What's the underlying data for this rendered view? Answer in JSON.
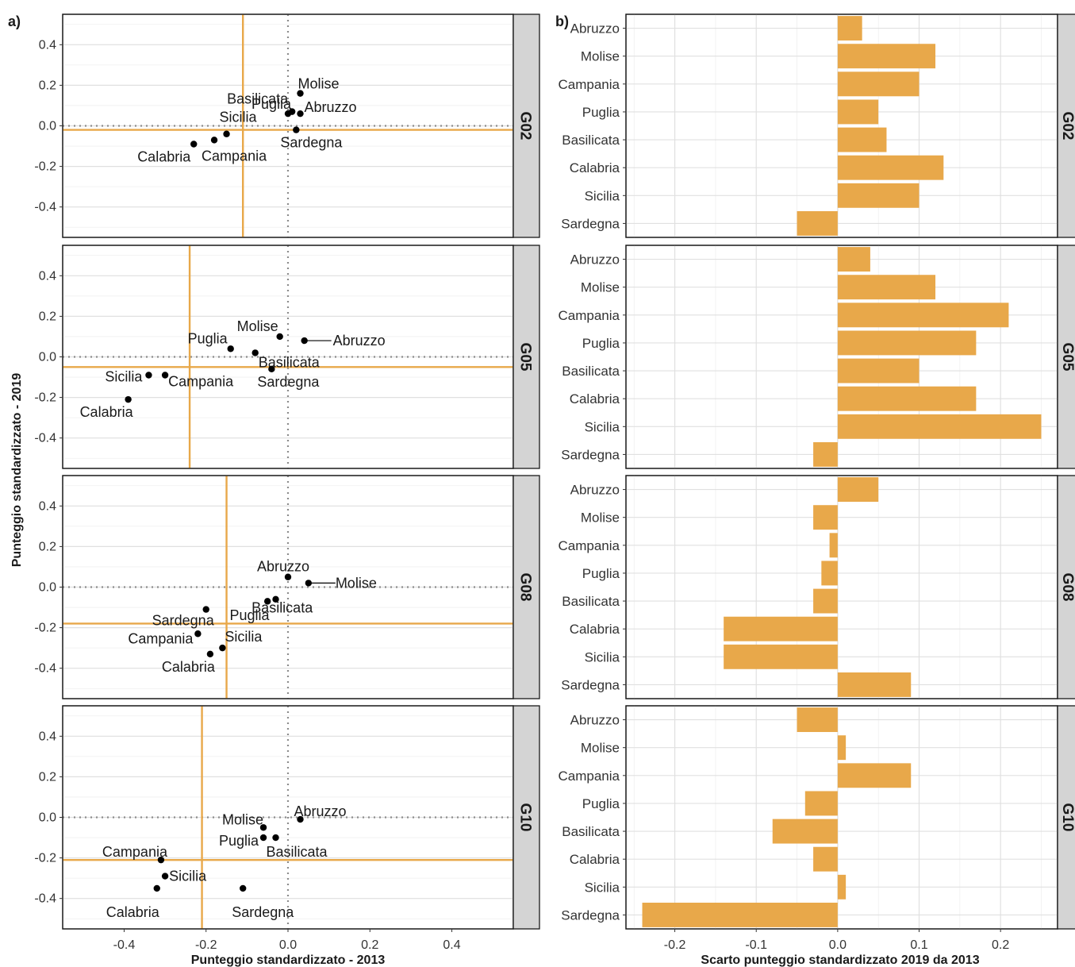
{
  "figure": {
    "panel_a_tag": "a)",
    "panel_b_tag": "b)"
  },
  "colors": {
    "accent": "#e8a84a",
    "bar": "#e8a84a",
    "point": "#000000",
    "strip": "#d4d4d4",
    "grid": "#e0e0e0",
    "zero_line": "#8c8c8c"
  },
  "chart_data": [
    {
      "type": "scatter",
      "panel": "a)",
      "xlabel": "Punteggio standardizzato - 2013",
      "ylabel": "Punteggio standardizzato - 2019",
      "xlim": [
        -0.55,
        0.55
      ],
      "ylim": [
        -0.55,
        0.55
      ],
      "xticks": [
        "-0.4",
        "-0.2",
        "0.0",
        "0.2",
        "0.4"
      ],
      "yticks": [
        "0.4",
        "0.2",
        "0.0",
        "-0.2",
        "-0.4"
      ],
      "zero_lines": "dotted",
      "grid": true,
      "facets": [
        {
          "name": "G02",
          "vline_x": -0.11,
          "hline_y": -0.02,
          "points": [
            {
              "label": "Molise",
              "x": 0.03,
              "y": 0.16
            },
            {
              "label": "Basilicata",
              "x": 0.01,
              "y": 0.07
            },
            {
              "label": "Puglia",
              "x": 0.0,
              "y": 0.06
            },
            {
              "label": "Abruzzo",
              "x": 0.03,
              "y": 0.06
            },
            {
              "label": "Sicilia",
              "x": -0.15,
              "y": -0.04
            },
            {
              "label": "Sardegna",
              "x": 0.02,
              "y": -0.02
            },
            {
              "label": "Campania",
              "x": -0.18,
              "y": -0.07
            },
            {
              "label": "Calabria",
              "x": -0.23,
              "y": -0.09
            }
          ]
        },
        {
          "name": "G05",
          "vline_x": -0.24,
          "hline_y": -0.05,
          "points": [
            {
              "label": "Molise",
              "x": -0.02,
              "y": 0.1
            },
            {
              "label": "Abruzzo",
              "x": 0.04,
              "y": 0.08
            },
            {
              "label": "Puglia",
              "x": -0.14,
              "y": 0.04
            },
            {
              "label": "Basilicata",
              "x": -0.08,
              "y": 0.02
            },
            {
              "label": "Sardegna",
              "x": -0.04,
              "y": -0.06
            },
            {
              "label": "Sicilia",
              "x": -0.34,
              "y": -0.09
            },
            {
              "label": "Campania",
              "x": -0.3,
              "y": -0.09
            },
            {
              "label": "Calabria",
              "x": -0.39,
              "y": -0.21
            }
          ]
        },
        {
          "name": "G08",
          "vline_x": -0.15,
          "hline_y": -0.18,
          "points": [
            {
              "label": "Abruzzo",
              "x": 0.0,
              "y": 0.05
            },
            {
              "label": "Molise",
              "x": 0.05,
              "y": 0.02
            },
            {
              "label": "Basilicata",
              "x": -0.05,
              "y": -0.07
            },
            {
              "label": "Puglia",
              "x": -0.03,
              "y": -0.06
            },
            {
              "label": "Sardegna",
              "x": -0.2,
              "y": -0.11
            },
            {
              "label": "Campania",
              "x": -0.22,
              "y": -0.23
            },
            {
              "label": "Sicilia",
              "x": -0.16,
              "y": -0.3
            },
            {
              "label": "Calabria",
              "x": -0.19,
              "y": -0.33
            }
          ]
        },
        {
          "name": "G10",
          "vline_x": -0.21,
          "hline_y": -0.21,
          "points": [
            {
              "label": "Abruzzo",
              "x": 0.03,
              "y": -0.01
            },
            {
              "label": "Molise",
              "x": -0.06,
              "y": -0.05
            },
            {
              "label": "Puglia",
              "x": -0.06,
              "y": -0.1
            },
            {
              "label": "Basilicata",
              "x": -0.03,
              "y": -0.1
            },
            {
              "label": "Campania",
              "x": -0.31,
              "y": -0.21
            },
            {
              "label": "Sicilia",
              "x": -0.3,
              "y": -0.29
            },
            {
              "label": "Calabria",
              "x": -0.32,
              "y": -0.35
            },
            {
              "label": "Sardegna",
              "x": -0.11,
              "y": -0.35
            }
          ]
        }
      ]
    },
    {
      "type": "bar",
      "orientation": "horizontal",
      "panel": "b)",
      "xlabel": "Scarto punteggio standardizzato 2019 da 2013",
      "xlim": [
        -0.26,
        0.27
      ],
      "xticks": [
        "-0.2",
        "-0.1",
        "0.0",
        "0.1",
        "0.2"
      ],
      "categories": [
        "Abruzzo",
        "Molise",
        "Campania",
        "Puglia",
        "Basilicata",
        "Calabria",
        "Sicilia",
        "Sardegna"
      ],
      "grid": true,
      "facets": [
        {
          "name": "G02",
          "values": [
            0.03,
            0.12,
            0.1,
            0.05,
            0.06,
            0.13,
            0.1,
            -0.05
          ]
        },
        {
          "name": "G05",
          "values": [
            0.04,
            0.12,
            0.21,
            0.17,
            0.1,
            0.17,
            0.25,
            -0.03
          ]
        },
        {
          "name": "G08",
          "values": [
            0.05,
            -0.03,
            -0.01,
            -0.02,
            -0.03,
            -0.14,
            -0.14,
            0.09
          ]
        },
        {
          "name": "G10",
          "values": [
            -0.05,
            0.01,
            0.09,
            -0.04,
            -0.08,
            -0.03,
            0.01,
            -0.24
          ]
        }
      ]
    }
  ]
}
